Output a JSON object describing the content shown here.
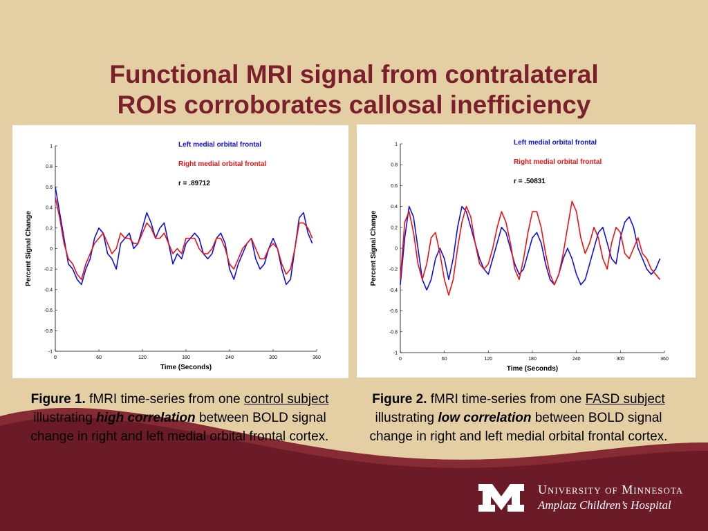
{
  "slide": {
    "title_line1": "Functional MRI signal from contralateral",
    "title_line2": "ROIs corroborates callosal inefficiency"
  },
  "colors": {
    "background": "#e3cfa3",
    "title": "#7a1f2b",
    "band_dark": "#6b1a27",
    "left_series": "#1010e0",
    "right_series": "#ee1111"
  },
  "captions": [
    {
      "figure": "Figure 1.",
      "text_a": " fMRI time-series from one ",
      "underline": "control subject",
      "text_b": " illustrating ",
      "emphasis": "high correlation",
      "text_c": " between BOLD signal change in right and left medial orbital frontal cortex."
    },
    {
      "figure": "Figure 2.",
      "text_a": " fMRI time-series from one ",
      "underline": "FASD subject",
      "text_b": " illustrating ",
      "emphasis": "low correlation",
      "text_c": " between BOLD signal change in right and left medial orbital frontal cortex."
    }
  ],
  "logo": {
    "line1": "University of Minnesota",
    "line2": "Amplatz Children’s Hospital",
    "icon": "university-m-logo"
  },
  "chart_data": [
    {
      "type": "line",
      "xlabel": "Time (Seconds)",
      "ylabel": "Percent Signal Change",
      "xlim": [
        0,
        360
      ],
      "ylim": [
        -1,
        1
      ],
      "xticks": [
        "0",
        "60",
        "120",
        "180",
        "240",
        "300",
        "360"
      ],
      "yticks": [
        "1",
        "0.8",
        "0.6",
        "0.4",
        "0.2",
        "0",
        "-0.2",
        "-0.4",
        "-0.6",
        "-0.8",
        "-1"
      ],
      "annotation": "r = .89712",
      "grid": false,
      "legend_position": "top-right",
      "x": [
        0,
        6,
        12,
        18,
        24,
        30,
        36,
        42,
        48,
        54,
        60,
        66,
        72,
        78,
        84,
        90,
        96,
        102,
        108,
        114,
        120,
        126,
        132,
        138,
        144,
        150,
        156,
        162,
        168,
        174,
        180,
        186,
        192,
        198,
        204,
        210,
        216,
        222,
        228,
        234,
        240,
        246,
        252,
        258,
        264,
        270,
        276,
        282,
        288,
        294,
        300,
        306,
        312,
        318,
        324,
        330,
        336,
        342,
        348,
        354
      ],
      "series": [
        {
          "name": "Left medial orbital frontal",
          "color": "#1010e0",
          "values": [
            0.6,
            0.35,
            0.1,
            -0.15,
            -0.2,
            -0.3,
            -0.35,
            -0.2,
            -0.1,
            0.1,
            0.2,
            0.15,
            -0.05,
            -0.1,
            -0.2,
            0.05,
            0.1,
            0.15,
            0.0,
            0.05,
            0.2,
            0.35,
            0.25,
            0.1,
            0.2,
            0.25,
            0.05,
            -0.15,
            -0.05,
            -0.1,
            0.05,
            0.1,
            0.15,
            0.1,
            -0.05,
            -0.1,
            -0.05,
            0.1,
            0.15,
            0.05,
            -0.2,
            -0.3,
            -0.15,
            -0.05,
            0.05,
            0.1,
            -0.1,
            -0.2,
            -0.15,
            0.0,
            0.1,
            0.0,
            -0.2,
            -0.35,
            -0.3,
            0.0,
            0.3,
            0.35,
            0.15,
            0.05
          ]
        },
        {
          "name": "Right medial orbital frontal",
          "color": "#ee1111",
          "values": [
            0.5,
            0.3,
            0.05,
            -0.1,
            -0.15,
            -0.25,
            -0.3,
            -0.15,
            -0.05,
            0.05,
            0.1,
            0.15,
            0.05,
            -0.05,
            0.0,
            0.15,
            0.1,
            0.1,
            0.05,
            0.05,
            0.15,
            0.25,
            0.2,
            0.1,
            0.1,
            0.15,
            0.05,
            -0.05,
            0.0,
            -0.05,
            0.1,
            0.1,
            0.1,
            0.0,
            -0.05,
            -0.05,
            0.0,
            0.1,
            0.1,
            0.0,
            -0.15,
            -0.2,
            -0.1,
            0.0,
            0.05,
            0.1,
            0.0,
            -0.1,
            -0.1,
            0.0,
            0.05,
            0.0,
            -0.15,
            -0.25,
            -0.2,
            0.0,
            0.25,
            0.25,
            0.2,
            0.1
          ]
        }
      ]
    },
    {
      "type": "line",
      "xlabel": "Time (Seconds)",
      "ylabel": "Percent Signal Change",
      "xlim": [
        0,
        360
      ],
      "ylim": [
        -1,
        1
      ],
      "xticks": [
        "0",
        "60",
        "120",
        "180",
        "240",
        "300",
        "360"
      ],
      "yticks": [
        "1",
        "0.8",
        "0.6",
        "0.4",
        "0.2",
        "0",
        "-0.2",
        "-0.4",
        "-0.6",
        "-0.8",
        "-1"
      ],
      "annotation": "r = .50831",
      "grid": false,
      "legend_position": "top-right",
      "x": [
        0,
        6,
        12,
        18,
        24,
        30,
        36,
        42,
        48,
        54,
        60,
        66,
        72,
        78,
        84,
        90,
        96,
        102,
        108,
        114,
        120,
        126,
        132,
        138,
        144,
        150,
        156,
        162,
        168,
        174,
        180,
        186,
        192,
        198,
        204,
        210,
        216,
        222,
        228,
        234,
        240,
        246,
        252,
        258,
        264,
        270,
        276,
        282,
        288,
        294,
        300,
        306,
        312,
        318,
        324,
        330,
        336,
        342,
        348,
        354
      ],
      "series": [
        {
          "name": "Left medial orbital frontal",
          "color": "#1010e0",
          "values": [
            -0.35,
            0.1,
            0.4,
            0.3,
            0.0,
            -0.3,
            -0.4,
            -0.3,
            -0.1,
            0.0,
            -0.1,
            -0.3,
            -0.1,
            0.2,
            0.4,
            0.35,
            0.2,
            0.05,
            -0.1,
            -0.2,
            -0.25,
            -0.1,
            0.05,
            0.2,
            0.15,
            0.0,
            -0.15,
            -0.25,
            -0.2,
            -0.05,
            0.1,
            0.15,
            0.05,
            -0.15,
            -0.3,
            -0.35,
            -0.25,
            -0.1,
            0.0,
            -0.1,
            -0.25,
            -0.35,
            -0.3,
            -0.15,
            0.0,
            0.15,
            0.2,
            0.05,
            -0.1,
            -0.15,
            0.1,
            0.25,
            0.3,
            0.2,
            0.0,
            -0.1,
            -0.2,
            -0.25,
            -0.2,
            -0.1
          ]
        },
        {
          "name": "Right medial orbital frontal",
          "color": "#ee1111",
          "values": [
            -0.3,
            0.25,
            0.35,
            0.15,
            -0.15,
            -0.3,
            -0.15,
            0.1,
            0.15,
            -0.05,
            -0.3,
            -0.45,
            -0.3,
            0.0,
            0.25,
            0.4,
            0.3,
            0.05,
            -0.15,
            -0.2,
            -0.15,
            0.0,
            0.2,
            0.35,
            0.25,
            0.05,
            -0.2,
            -0.3,
            -0.1,
            0.15,
            0.35,
            0.35,
            0.2,
            -0.05,
            -0.25,
            -0.35,
            -0.25,
            -0.05,
            0.2,
            0.45,
            0.35,
            0.1,
            -0.05,
            0.05,
            0.2,
            0.1,
            -0.1,
            -0.2,
            0.05,
            0.2,
            0.15,
            -0.05,
            -0.1,
            0.0,
            0.1,
            -0.05,
            -0.1,
            -0.2,
            -0.25,
            -0.3
          ]
        }
      ]
    }
  ]
}
